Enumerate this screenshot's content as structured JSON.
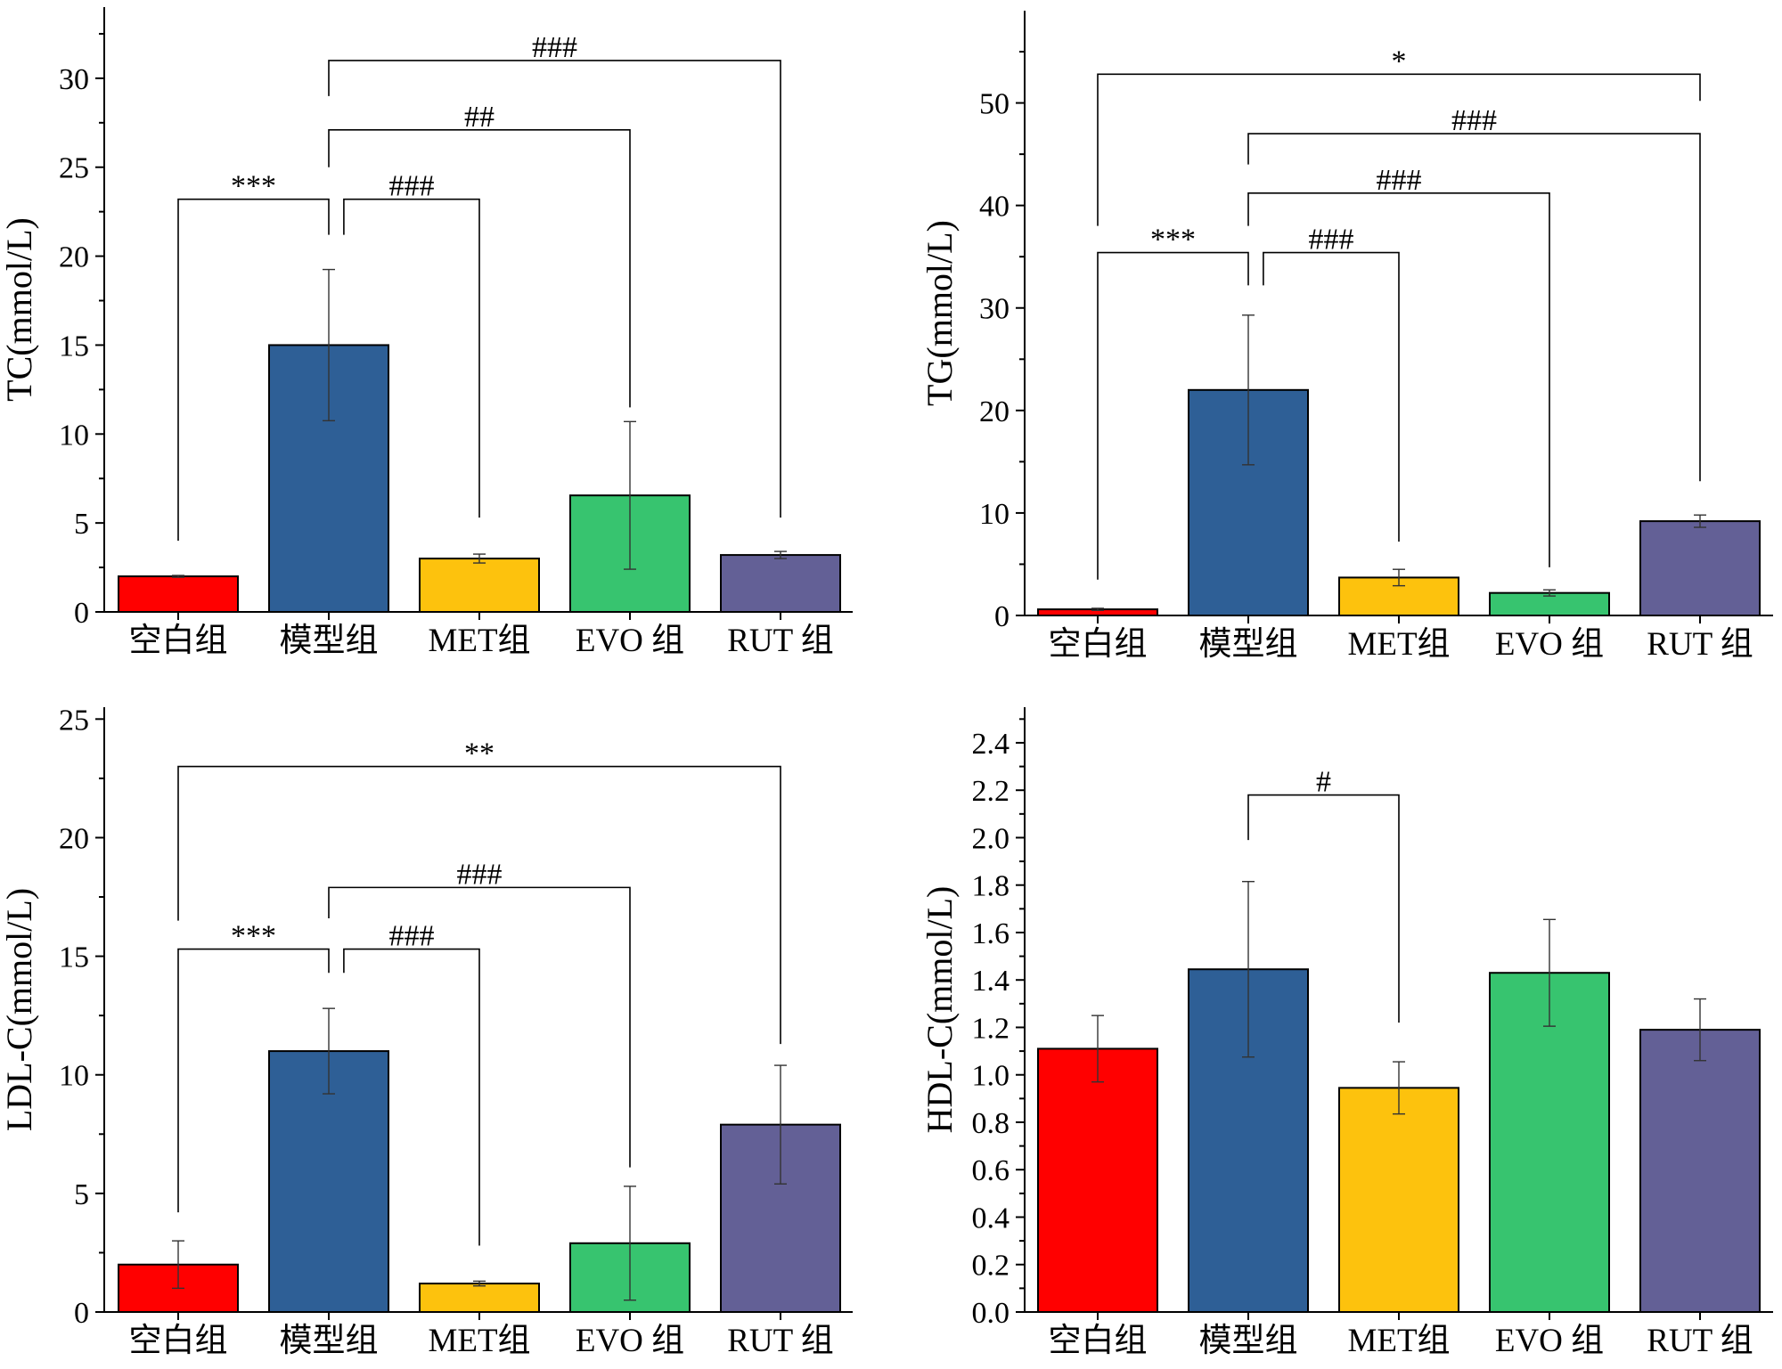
{
  "categories": [
    "空白组",
    "模型组",
    "MET组",
    "EVO 组",
    "RUT 组"
  ],
  "colors": [
    "#ff0000",
    "#2e5f96",
    "#fdc20d",
    "#37c46f",
    "#636096"
  ],
  "chart_data": [
    {
      "type": "bar",
      "ylabel": "TC(mmol/L)",
      "ylim": [
        0,
        34
      ],
      "yticks": [
        0,
        5,
        10,
        15,
        20,
        25,
        30
      ],
      "tick_decimals": 0,
      "categories": [
        "空白组",
        "模型组",
        "MET组",
        "EVO 组",
        "RUT 组"
      ],
      "values": [
        2.0,
        15.0,
        3.0,
        6.55,
        3.2
      ],
      "errors": [
        0.05,
        4.25,
        0.25,
        4.15,
        0.2
      ],
      "significance": [
        {
          "from": 0,
          "to": 1,
          "label": "***",
          "y": 23.2,
          "from_drop": 4.0,
          "to_drop": 21.2
        },
        {
          "from": 1.1,
          "to": 2,
          "label": "###",
          "y": 23.2,
          "from_drop": 21.2,
          "to_drop": 5.3
        },
        {
          "from": 1,
          "to": 3,
          "label": "##",
          "y": 27.1,
          "from_drop": 25.0,
          "to_drop": 11.5
        },
        {
          "from": 1,
          "to": 4,
          "label": "###",
          "y": 31.0,
          "from_drop": 29.0,
          "to_drop": 5.3
        }
      ]
    },
    {
      "type": "bar",
      "ylabel": "TG(mmol/L)",
      "ylim": [
        0,
        59
      ],
      "yticks": [
        0,
        10,
        20,
        30,
        40,
        50
      ],
      "tick_decimals": 0,
      "categories": [
        "空白组",
        "模型组",
        "MET组",
        "EVO 组",
        "RUT 组"
      ],
      "values": [
        0.6,
        22.0,
        3.7,
        2.2,
        9.2
      ],
      "errors": [
        0.1,
        7.3,
        0.8,
        0.3,
        0.6
      ],
      "significance": [
        {
          "from": 0,
          "to": 1,
          "label": "***",
          "y": 35.4,
          "from_drop": 3.5,
          "to_drop": 32.2
        },
        {
          "from": 1.1,
          "to": 2,
          "label": "###",
          "y": 35.4,
          "from_drop": 32.2,
          "to_drop": 7.2
        },
        {
          "from": 1,
          "to": 3,
          "label": "###",
          "y": 41.2,
          "from_drop": 38.0,
          "to_drop": 4.7
        },
        {
          "from": 1,
          "to": 4,
          "label": "###",
          "y": 47.0,
          "from_drop": 44.0,
          "to_drop": 13.1
        },
        {
          "from": 0,
          "to": 4,
          "label": "*",
          "y": 52.8,
          "from_drop": 38.0,
          "to_drop": 50.2
        }
      ]
    },
    {
      "type": "bar",
      "ylabel": "LDL-C(mmol/L)",
      "ylim": [
        0,
        25.5
      ],
      "yticks": [
        0,
        5,
        10,
        15,
        20,
        25
      ],
      "tick_decimals": 0,
      "categories": [
        "空白组",
        "模型组",
        "MET组",
        "EVO 组",
        "RUT 组"
      ],
      "values": [
        2.0,
        11.0,
        1.2,
        2.9,
        7.9
      ],
      "errors": [
        1.0,
        1.8,
        0.1,
        2.4,
        2.5
      ],
      "significance": [
        {
          "from": 0,
          "to": 1,
          "label": "***",
          "y": 15.3,
          "from_drop": 4.2,
          "to_drop": 14.3
        },
        {
          "from": 1.1,
          "to": 2,
          "label": "###",
          "y": 15.3,
          "from_drop": 14.3,
          "to_drop": 2.8
        },
        {
          "from": 1,
          "to": 3,
          "label": "###",
          "y": 17.9,
          "from_drop": 16.6,
          "to_drop": 6.1
        },
        {
          "from": 0,
          "to": 4,
          "label": "**",
          "y": 23.0,
          "from_drop": 16.5,
          "to_drop": 11.3
        }
      ]
    },
    {
      "type": "bar",
      "ylabel": "HDL-C(mmol/L)",
      "ylim": [
        0,
        2.55
      ],
      "yticks": [
        0.0,
        0.2,
        0.4,
        0.6,
        0.8,
        1.0,
        1.2,
        1.4,
        1.6,
        1.8,
        2.0,
        2.2,
        2.4
      ],
      "tick_decimals": 1,
      "categories": [
        "空白组",
        "模型组",
        "MET组",
        "EVO 组",
        "RUT 组"
      ],
      "values": [
        1.11,
        1.445,
        0.945,
        1.43,
        1.19
      ],
      "errors": [
        0.14,
        0.37,
        0.11,
        0.225,
        0.13
      ],
      "significance": [
        {
          "from": 1,
          "to": 2,
          "label": "#",
          "y": 2.18,
          "from_drop": 1.99,
          "to_drop": 1.22
        }
      ]
    }
  ]
}
